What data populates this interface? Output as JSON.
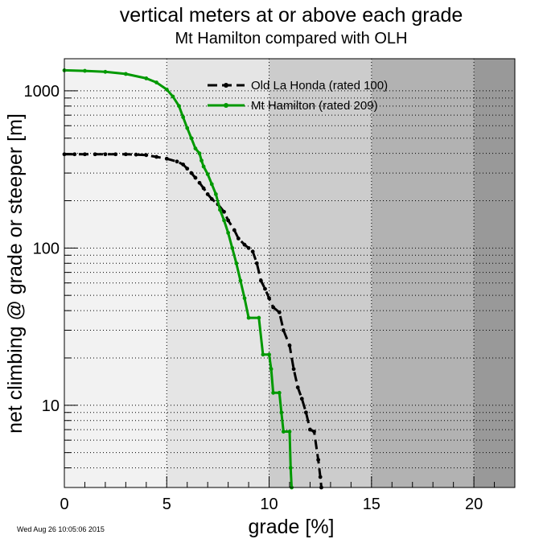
{
  "chart_data": {
    "type": "line",
    "title": "vertical meters at or above each grade",
    "subtitle": "Mt Hamilton compared with OLH",
    "xlabel": "grade [%]",
    "ylabel": "net climbing @ grade or steeper [m]",
    "xlim": [
      0,
      22
    ],
    "ylim": [
      3,
      1600
    ],
    "y_scale": "log",
    "x_ticks": [
      0,
      5,
      10,
      15,
      20
    ],
    "x_tick_labels": [
      "0",
      "5",
      "10",
      "15",
      "20"
    ],
    "y_ticks": [
      10,
      100,
      1000
    ],
    "y_tick_labels": [
      "10",
      "100",
      "1000"
    ],
    "grid": true,
    "background_bands": [
      {
        "x0": 0,
        "x1": 5,
        "color": "#f2f2f2"
      },
      {
        "x0": 5,
        "x1": 10,
        "color": "#e5e5e5"
      },
      {
        "x0": 10,
        "x1": 15,
        "color": "#cccccc"
      },
      {
        "x0": 15,
        "x1": 20,
        "color": "#b2b2b2"
      },
      {
        "x0": 20,
        "x1": 22,
        "color": "#999999"
      }
    ],
    "legend_position": "top-center",
    "series": [
      {
        "name": "Old La Honda (rated 100)",
        "color": "#000000",
        "style": "dashed",
        "points": [
          [
            0,
            395
          ],
          [
            0.5,
            395
          ],
          [
            1,
            395
          ],
          [
            1.5,
            395
          ],
          [
            2,
            395
          ],
          [
            2.5,
            395
          ],
          [
            3,
            395
          ],
          [
            3.5,
            393
          ],
          [
            4,
            390
          ],
          [
            4.5,
            380
          ],
          [
            5,
            370
          ],
          [
            5.5,
            355
          ],
          [
            5.8,
            340
          ],
          [
            6,
            320
          ],
          [
            6.2,
            300
          ],
          [
            6.4,
            280
          ],
          [
            6.6,
            260
          ],
          [
            6.8,
            240
          ],
          [
            7,
            220
          ],
          [
            7.2,
            205
          ],
          [
            7.5,
            190
          ],
          [
            7.8,
            170
          ],
          [
            8,
            150
          ],
          [
            8.3,
            130
          ],
          [
            8.5,
            115
          ],
          [
            8.8,
            105
          ],
          [
            9,
            100
          ],
          [
            9.2,
            95
          ],
          [
            9.4,
            80
          ],
          [
            9.6,
            62
          ],
          [
            9.8,
            55
          ],
          [
            10,
            48
          ],
          [
            10.2,
            42
          ],
          [
            10.5,
            39
          ],
          [
            10.7,
            30
          ],
          [
            11,
            24
          ],
          [
            11.2,
            17
          ],
          [
            11.4,
            13
          ],
          [
            11.6,
            11
          ],
          [
            11.8,
            9
          ],
          [
            12,
            7
          ],
          [
            12.2,
            6.8
          ],
          [
            12.4,
            4.5
          ],
          [
            12.5,
            3.5
          ],
          [
            12.55,
            3
          ]
        ]
      },
      {
        "name": "Mt Hamilton (rated 209)",
        "color": "#009900",
        "style": "solid",
        "points": [
          [
            0,
            1350
          ],
          [
            1,
            1340
          ],
          [
            2,
            1320
          ],
          [
            3,
            1280
          ],
          [
            4,
            1200
          ],
          [
            4.5,
            1130
          ],
          [
            5,
            1020
          ],
          [
            5.3,
            920
          ],
          [
            5.6,
            800
          ],
          [
            5.8,
            680
          ],
          [
            6,
            580
          ],
          [
            6.2,
            500
          ],
          [
            6.4,
            430
          ],
          [
            6.6,
            400
          ],
          [
            6.7,
            360
          ],
          [
            6.8,
            330
          ],
          [
            7,
            295
          ],
          [
            7.2,
            255
          ],
          [
            7.4,
            220
          ],
          [
            7.6,
            175
          ],
          [
            7.8,
            150
          ],
          [
            8,
            125
          ],
          [
            8.2,
            100
          ],
          [
            8.4,
            80
          ],
          [
            8.6,
            62
          ],
          [
            8.8,
            48
          ],
          [
            9,
            36
          ],
          [
            9.5,
            36
          ],
          [
            9.7,
            21
          ],
          [
            10,
            21
          ],
          [
            10.1,
            17
          ],
          [
            10.2,
            12
          ],
          [
            10.5,
            12
          ],
          [
            10.6,
            9
          ],
          [
            10.7,
            6.8
          ],
          [
            11,
            6.8
          ],
          [
            11.05,
            4
          ],
          [
            11.1,
            3
          ]
        ]
      }
    ]
  },
  "timestamp": "Wed Aug 26 10:05:06 2015"
}
